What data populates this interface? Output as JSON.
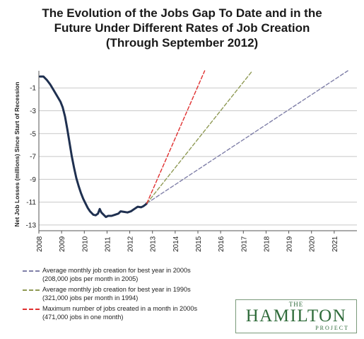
{
  "chart_data": {
    "type": "line",
    "title": [
      "The Evolution of the Jobs Gap To Date and in the",
      "Future Under Different Rates of Job Creation",
      "(Through September 2012)"
    ],
    "ylabel": "Net Job Losses (millions) Since Start of Recession",
    "xlabel": "",
    "x_ticks": [
      "2008",
      "2009",
      "2010",
      "2011",
      "2012",
      "2013",
      "2014",
      "2015",
      "2016",
      "2017",
      "2018",
      "2019",
      "2020",
      "2021"
    ],
    "y_ticks": [
      -1,
      -3,
      -5,
      -7,
      -9,
      -11,
      -13
    ],
    "ylim": [
      -13.5,
      0.5
    ],
    "xlim": [
      2008.0,
      2022.0
    ],
    "grid": "horizontal",
    "series": [
      {
        "color": "#1f3050",
        "style": "solid",
        "points": [
          [
            2008.05,
            0.0
          ],
          [
            2008.2,
            0.0
          ],
          [
            2008.35,
            -0.3
          ],
          [
            2008.5,
            -0.7
          ],
          [
            2008.65,
            -1.2
          ],
          [
            2008.8,
            -1.7
          ],
          [
            2008.95,
            -2.2
          ],
          [
            2009.05,
            -2.7
          ],
          [
            2009.15,
            -3.5
          ],
          [
            2009.25,
            -4.6
          ],
          [
            2009.35,
            -5.8
          ],
          [
            2009.45,
            -7.0
          ],
          [
            2009.55,
            -8.0
          ],
          [
            2009.65,
            -8.9
          ],
          [
            2009.75,
            -9.6
          ],
          [
            2009.85,
            -10.2
          ],
          [
            2009.95,
            -10.7
          ],
          [
            2010.05,
            -11.1
          ],
          [
            2010.15,
            -11.5
          ],
          [
            2010.25,
            -11.8
          ],
          [
            2010.4,
            -12.1
          ],
          [
            2010.5,
            -12.15
          ],
          [
            2010.6,
            -12.0
          ],
          [
            2010.68,
            -11.6
          ],
          [
            2010.75,
            -11.9
          ],
          [
            2010.85,
            -12.1
          ],
          [
            2010.95,
            -12.3
          ],
          [
            2011.05,
            -12.2
          ],
          [
            2011.2,
            -12.2
          ],
          [
            2011.35,
            -12.1
          ],
          [
            2011.5,
            -12.0
          ],
          [
            2011.6,
            -11.8
          ],
          [
            2011.75,
            -11.85
          ],
          [
            2011.9,
            -11.9
          ],
          [
            2012.05,
            -11.8
          ],
          [
            2012.2,
            -11.6
          ],
          [
            2012.35,
            -11.4
          ],
          [
            2012.5,
            -11.45
          ],
          [
            2012.6,
            -11.35
          ],
          [
            2012.7,
            -11.2
          ],
          [
            2012.75,
            -11.1
          ]
        ]
      },
      {
        "label": "Average monthly job creation for best year in 2000s (208,000 jobs per month in 2005)",
        "color": "#7f7fa8",
        "style": "dashed",
        "points": [
          [
            2012.75,
            -11.1
          ],
          [
            2021.6,
            0.5
          ]
        ]
      },
      {
        "label": "Average monthly job creation for best year in 1990s (321,000 jobs per month in 1994)",
        "color": "#8f9a55",
        "style": "dashed",
        "points": [
          [
            2012.75,
            -11.1
          ],
          [
            2017.4,
            0.5
          ]
        ]
      },
      {
        "label": "Maximum number of jobs created in a month in 2000s (471,000 jobs in one month)",
        "color": "#e03030",
        "style": "dashed",
        "points": [
          [
            2012.75,
            -11.1
          ],
          [
            2015.3,
            0.5
          ]
        ]
      }
    ]
  },
  "legend": [
    {
      "line1": "Average monthly job creation for best year in 2000s",
      "line2": "(208,000 jobs per month in 2005)",
      "color": "#7f7fa8"
    },
    {
      "line1": "Average monthly job creation for best year in 1990s",
      "line2": "(321,000 jobs per month in 1994)",
      "color": "#8f9a55"
    },
    {
      "line1": "Maximum number of jobs created in a month  in 2000s",
      "line2": "(471,000 jobs in one month)",
      "color": "#e03030"
    }
  ],
  "logo": {
    "line1": "THE",
    "line2": "HAMILTON",
    "line3": "PROJECT"
  }
}
